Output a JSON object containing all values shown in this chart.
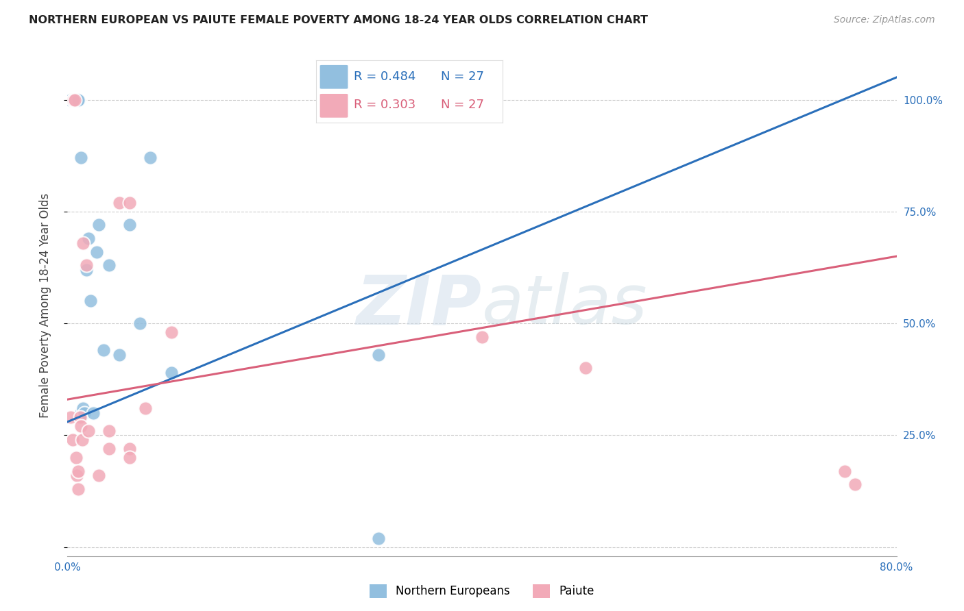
{
  "title": "NORTHERN EUROPEAN VS PAIUTE FEMALE POVERTY AMONG 18-24 YEAR OLDS CORRELATION CHART",
  "source": "Source: ZipAtlas.com",
  "ylabel": "Female Poverty Among 18-24 Year Olds",
  "xlim": [
    0.0,
    0.8
  ],
  "ylim": [
    -0.02,
    1.1
  ],
  "blue_R": "0.484",
  "blue_N": "27",
  "pink_R": "0.303",
  "pink_N": "27",
  "blue_color": "#92bfdf",
  "pink_color": "#f2aab8",
  "blue_trend_color": "#2a6fba",
  "pink_trend_color": "#d9607a",
  "watermark_zip": "ZIP",
  "watermark_atlas": "atlas",
  "ytick_positions": [
    0.0,
    0.25,
    0.5,
    0.75,
    1.0
  ],
  "ytick_labels_right": [
    "",
    "25.0%",
    "50.0%",
    "75.0%",
    "100.0%"
  ],
  "xtick_positions": [
    0.0,
    0.1,
    0.2,
    0.3,
    0.4,
    0.5,
    0.6,
    0.8
  ],
  "xtick_labels": [
    "0.0%",
    "",
    "",
    "",
    "",
    "",
    "",
    "80.0%"
  ],
  "blue_x": [
    0.003,
    0.006,
    0.006,
    0.008,
    0.008,
    0.01,
    0.01,
    0.01,
    0.013,
    0.013,
    0.015,
    0.016,
    0.018,
    0.02,
    0.022,
    0.025,
    0.028,
    0.03,
    0.035,
    0.04,
    0.05,
    0.06,
    0.07,
    0.08,
    0.1,
    0.3,
    0.3
  ],
  "blue_y": [
    1.0,
    1.0,
    1.0,
    1.0,
    1.0,
    1.0,
    1.0,
    1.0,
    0.87,
    0.3,
    0.31,
    0.3,
    0.62,
    0.69,
    0.55,
    0.3,
    0.66,
    0.72,
    0.44,
    0.63,
    0.43,
    0.72,
    0.5,
    0.87,
    0.39,
    0.43,
    0.02
  ],
  "pink_x": [
    0.003,
    0.005,
    0.006,
    0.007,
    0.008,
    0.009,
    0.01,
    0.01,
    0.012,
    0.013,
    0.014,
    0.015,
    0.018,
    0.02,
    0.03,
    0.04,
    0.04,
    0.05,
    0.06,
    0.06,
    0.06,
    0.075,
    0.1,
    0.4,
    0.5,
    0.75,
    0.76
  ],
  "pink_y": [
    0.29,
    0.24,
    1.0,
    1.0,
    0.2,
    0.16,
    0.13,
    0.17,
    0.29,
    0.27,
    0.24,
    0.68,
    0.63,
    0.26,
    0.16,
    0.22,
    0.26,
    0.77,
    0.77,
    0.22,
    0.2,
    0.31,
    0.48,
    0.47,
    0.4,
    0.17,
    0.14
  ],
  "blue_trend_x": [
    0.0,
    0.8
  ],
  "blue_trend_y": [
    0.28,
    1.05
  ],
  "pink_trend_x": [
    0.0,
    0.8
  ],
  "pink_trend_y": [
    0.33,
    0.65
  ]
}
